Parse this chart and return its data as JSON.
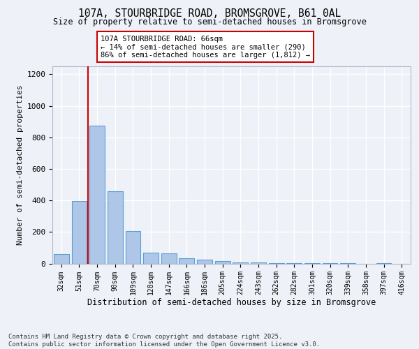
{
  "title1": "107A, STOURBRIDGE ROAD, BROMSGROVE, B61 0AL",
  "title2": "Size of property relative to semi-detached houses in Bromsgrove",
  "xlabel": "Distribution of semi-detached houses by size in Bromsgrove",
  "ylabel": "Number of semi-detached properties",
  "categories": [
    "32sqm",
    "51sqm",
    "70sqm",
    "90sqm",
    "109sqm",
    "128sqm",
    "147sqm",
    "166sqm",
    "186sqm",
    "205sqm",
    "224sqm",
    "243sqm",
    "262sqm",
    "282sqm",
    "301sqm",
    "320sqm",
    "339sqm",
    "358sqm",
    "397sqm",
    "416sqm"
  ],
  "values": [
    60,
    395,
    875,
    460,
    205,
    70,
    65,
    35,
    25,
    15,
    8,
    5,
    3,
    2,
    1,
    1,
    1,
    0,
    1,
    0
  ],
  "bar_color": "#aec6e8",
  "bar_edge_color": "#5a9fd4",
  "vline_x": 1.5,
  "vline_color": "#cc0000",
  "annotation_text": "107A STOURBRIDGE ROAD: 66sqm\n← 14% of semi-detached houses are smaller (290)\n86% of semi-detached houses are larger (1,812) →",
  "annotation_box_color": "#ffffff",
  "annotation_box_edge": "#cc0000",
  "footer": "Contains HM Land Registry data © Crown copyright and database right 2025.\nContains public sector information licensed under the Open Government Licence v3.0.",
  "ylim": [
    0,
    1250
  ],
  "yticks": [
    0,
    200,
    400,
    600,
    800,
    1000,
    1200
  ],
  "background_color": "#eef2f8",
  "grid_color": "#ffffff"
}
